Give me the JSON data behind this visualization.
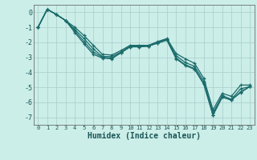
{
  "xlabel": "Humidex (Indice chaleur)",
  "background_color": "#cceee8",
  "grid_color": "#aacccc",
  "line_color": "#1a6b6b",
  "xlim": [
    -0.5,
    23.5
  ],
  "ylim": [
    -7.5,
    0.5
  ],
  "yticks": [
    0,
    -1,
    -2,
    -3,
    -4,
    -5,
    -6,
    -7
  ],
  "xticks": [
    0,
    1,
    2,
    3,
    4,
    5,
    6,
    7,
    8,
    9,
    10,
    11,
    12,
    13,
    14,
    15,
    16,
    17,
    18,
    19,
    20,
    21,
    22,
    23
  ],
  "lines": [
    {
      "x": [
        0,
        1,
        2,
        3,
        4,
        5,
        6,
        7,
        8,
        9,
        10,
        11,
        12,
        13,
        14,
        15,
        16,
        17,
        18,
        19,
        20,
        21,
        22,
        23
      ],
      "y": [
        -1.0,
        0.2,
        -0.15,
        -0.55,
        -1.0,
        -1.55,
        -2.2,
        -2.8,
        -2.85,
        -2.55,
        -2.2,
        -2.2,
        -2.2,
        -1.95,
        -1.75,
        -2.75,
        -3.1,
        -3.4,
        -4.4,
        -6.5,
        -5.4,
        -5.6,
        -4.85,
        -4.85
      ]
    },
    {
      "x": [
        0,
        1,
        2,
        3,
        4,
        5,
        6,
        7,
        8,
        9,
        10,
        11,
        12,
        13,
        14,
        15,
        16,
        17,
        18,
        19,
        20,
        21,
        22,
        23
      ],
      "y": [
        -1.0,
        0.2,
        -0.15,
        -0.55,
        -1.15,
        -1.75,
        -2.45,
        -2.95,
        -2.95,
        -2.65,
        -2.25,
        -2.25,
        -2.25,
        -2.0,
        -1.8,
        -2.9,
        -3.35,
        -3.6,
        -4.6,
        -6.7,
        -5.55,
        -5.8,
        -5.1,
        -4.95
      ]
    },
    {
      "x": [
        0,
        1,
        2,
        3,
        4,
        5,
        6,
        7,
        8,
        9,
        10,
        11,
        12,
        13,
        14,
        15,
        16,
        17,
        18,
        19,
        20,
        21,
        22,
        23
      ],
      "y": [
        -1.0,
        0.2,
        -0.15,
        -0.55,
        -1.25,
        -1.95,
        -2.65,
        -3.0,
        -3.05,
        -2.7,
        -2.3,
        -2.3,
        -2.25,
        -2.05,
        -1.85,
        -3.05,
        -3.5,
        -3.75,
        -4.75,
        -6.85,
        -5.65,
        -5.85,
        -5.3,
        -4.95
      ]
    },
    {
      "x": [
        0,
        1,
        2,
        3,
        4,
        5,
        6,
        7,
        8,
        9,
        10,
        11,
        12,
        13,
        14,
        15,
        16,
        17,
        18,
        19,
        20,
        21,
        22,
        23
      ],
      "y": [
        -1.0,
        0.2,
        -0.15,
        -0.55,
        -1.35,
        -2.1,
        -2.8,
        -3.05,
        -3.1,
        -2.7,
        -2.3,
        -2.3,
        -2.25,
        -2.05,
        -1.85,
        -3.1,
        -3.55,
        -3.8,
        -4.8,
        -6.85,
        -5.65,
        -5.85,
        -5.35,
        -4.95
      ]
    }
  ]
}
